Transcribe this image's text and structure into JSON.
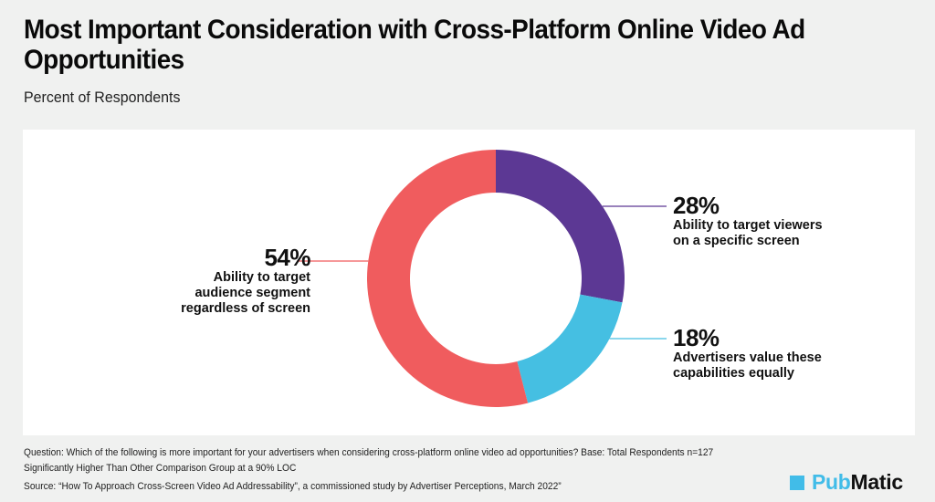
{
  "chart_data": {
    "type": "pie",
    "variant": "donut",
    "title": "Most Important Consideration with Cross-Platform Online Video Ad Opportunities",
    "subtitle": "Percent of Respondents",
    "unit": "%",
    "start_angle_deg": 0,
    "direction": "clockwise",
    "slices": [
      {
        "label": "Ability to target viewers on a specific screen",
        "label_lines": [
          "Ability to target viewers",
          "on a specific screen"
        ],
        "value": 28,
        "value_label": "28%",
        "color": "#5c3894"
      },
      {
        "label": "Advertisers value these capabilities equally",
        "label_lines": [
          "Advertisers value these",
          "capabilities equally"
        ],
        "value": 18,
        "value_label": "18%",
        "color": "#45bfe2"
      },
      {
        "label": "Ability to target audience segment regardless of screen",
        "label_lines": [
          "Ability to target",
          "audience segment",
          "regardless of screen"
        ],
        "value": 54,
        "value_label": "54%",
        "color": "#f05c5e"
      }
    ]
  },
  "footer": {
    "question": "Question: Which of the following is more important for your advertisers when considering cross-platform online video ad opportunities? Base: Total Respondents n=127",
    "significance": "Significantly Higher  Than Other Comparison Group at a 90% LOC",
    "source": "Source: “How To Approach Cross-Screen Video Ad Addressability”, a commissioned study by Advertiser Perceptions, March 2022”"
  },
  "logo": {
    "pub": "Pub",
    "matic": "Matic",
    "color": "#41bce8"
  }
}
